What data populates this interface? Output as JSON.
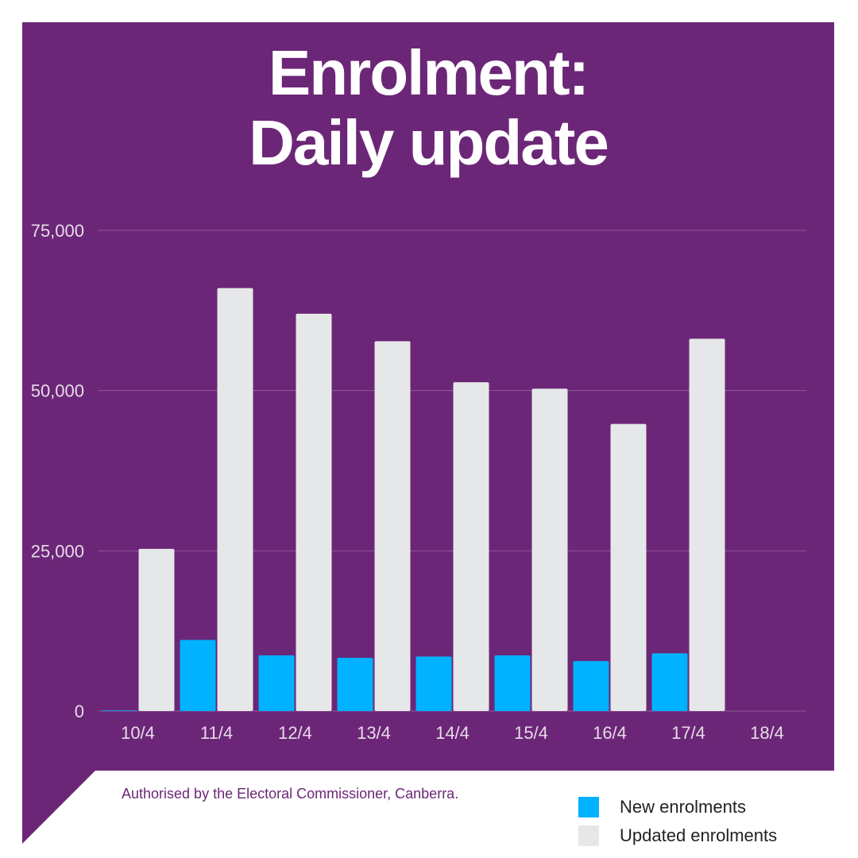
{
  "title_lines": [
    "Enrolment:",
    "Daily update"
  ],
  "authorisation": "Authorised by the Electoral Commissioner, Canberra.",
  "colors": {
    "background": "#6c2677",
    "new": "#00b2ff",
    "updated": "#e6e7e9",
    "text_on_dark": "#ffffff",
    "tick_text": "#e6dbe8",
    "grid": "#8e5a98"
  },
  "chart_data": {
    "type": "bar",
    "categories": [
      "10/4",
      "11/4",
      "12/4",
      "13/4",
      "14/4",
      "15/4",
      "16/4",
      "17/4",
      "18/4"
    ],
    "series": [
      {
        "name": "New enrolments",
        "values": [
          100,
          11100,
          8700,
          8300,
          8500,
          8700,
          7800,
          9000,
          0
        ]
      },
      {
        "name": "Updated enrolments",
        "values": [
          25300,
          66000,
          62000,
          57700,
          51300,
          50300,
          44800,
          58100,
          0
        ]
      }
    ],
    "yticks": [
      0,
      25000,
      50000,
      75000
    ],
    "ytick_labels": [
      "0",
      "25,000",
      "50,000",
      "75,000"
    ],
    "ylim": [
      0,
      75000
    ],
    "grid": true,
    "legend_position": "bottom-right"
  }
}
